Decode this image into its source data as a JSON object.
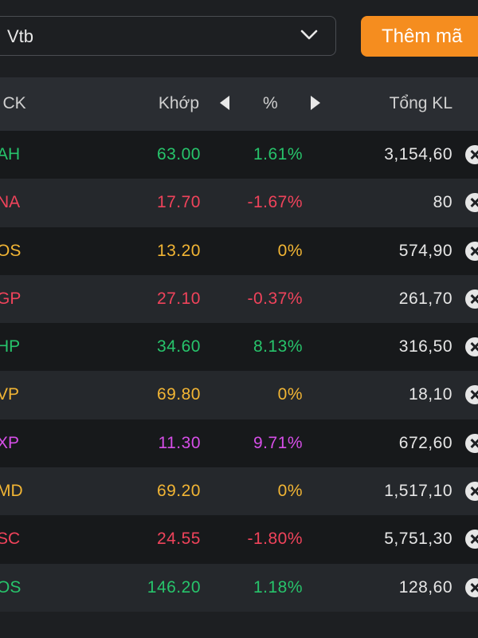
{
  "search": {
    "value": "Vtb"
  },
  "add_button": {
    "label": "Thêm mã"
  },
  "table": {
    "columns": {
      "code": "ã CK",
      "price": "Khớp",
      "percent": "%",
      "volume": "Tổng KL"
    },
    "rows": [
      {
        "code": "AH",
        "price": "63.00",
        "percent": "1.61%",
        "volume": "3,154,60",
        "status": "up"
      },
      {
        "code": "NA",
        "price": "17.70",
        "percent": "-1.67%",
        "volume": "80",
        "status": "down"
      },
      {
        "code": "OS",
        "price": "13.20",
        "percent": "0%",
        "volume": "574,90",
        "status": "ref"
      },
      {
        "code": "GP",
        "price": "27.10",
        "percent": "-0.37%",
        "volume": "261,70",
        "status": "down"
      },
      {
        "code": "HP",
        "price": "34.60",
        "percent": "8.13%",
        "volume": "316,50",
        "status": "up"
      },
      {
        "code": "VP",
        "price": "69.80",
        "percent": "0%",
        "volume": "18,10",
        "status": "ref"
      },
      {
        "code": "XP",
        "price": "11.30",
        "percent": "9.71%",
        "volume": "672,60",
        "status": "ceil"
      },
      {
        "code": "MD",
        "price": "69.20",
        "percent": "0%",
        "volume": "1,517,10",
        "status": "ref"
      },
      {
        "code": "SC",
        "price": "24.55",
        "percent": "-1.80%",
        "volume": "5,751,30",
        "status": "down"
      },
      {
        "code": "OS",
        "price": "146.20",
        "percent": "1.18%",
        "volume": "128,60",
        "status": "up"
      }
    ]
  },
  "colors": {
    "up": "#27c46b",
    "down": "#f0435b",
    "reference": "#f2b534",
    "ceiling": "#d64ee8",
    "accent": "#f58d1f"
  },
  "icons": [
    "chevron-down-icon",
    "arrow-left-icon",
    "arrow-right-icon",
    "remove-icon"
  ]
}
